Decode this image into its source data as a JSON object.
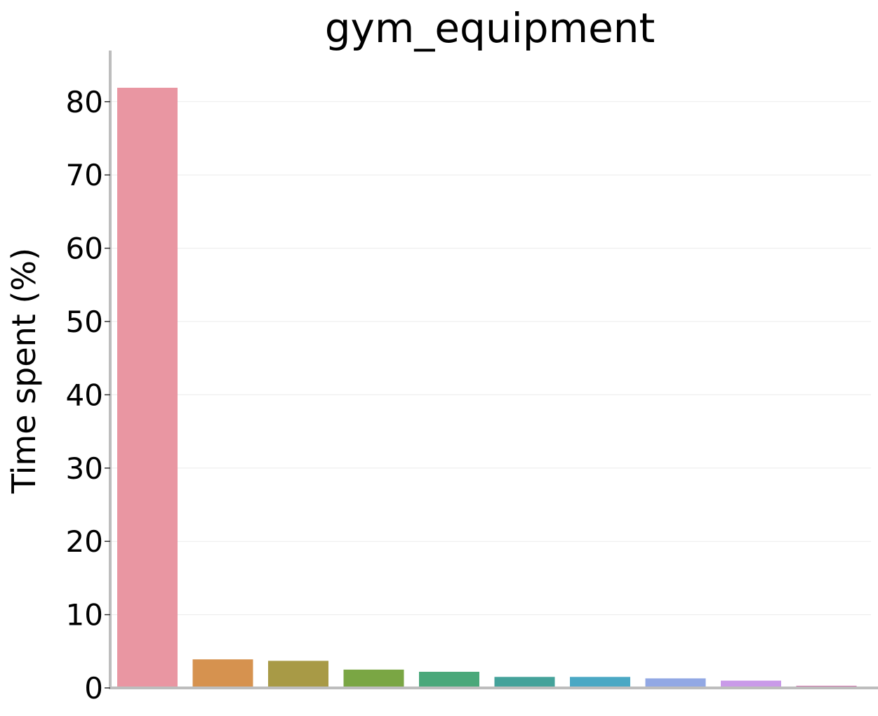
{
  "chart_data": {
    "type": "bar",
    "title": "gym_equipment",
    "xlabel": "",
    "ylabel": "Time spent (%)",
    "ylim": [
      0,
      87
    ],
    "yticks": [
      0,
      10,
      20,
      30,
      40,
      50,
      60,
      70,
      80
    ],
    "grid": true,
    "legend": "none",
    "categories": [
      "",
      "",
      "",
      "",
      "",
      "",
      "",
      "",
      "",
      ""
    ],
    "values": [
      81.9,
      3.9,
      3.7,
      2.5,
      2.2,
      1.5,
      1.5,
      1.3,
      1.0,
      0.3
    ],
    "colors": [
      "#e996a2",
      "#d6924f",
      "#a89a46",
      "#7aa644",
      "#4aa87a",
      "#44a29a",
      "#4aa8c4",
      "#92a8e4",
      "#c99ae8",
      "#d17ab0"
    ]
  }
}
